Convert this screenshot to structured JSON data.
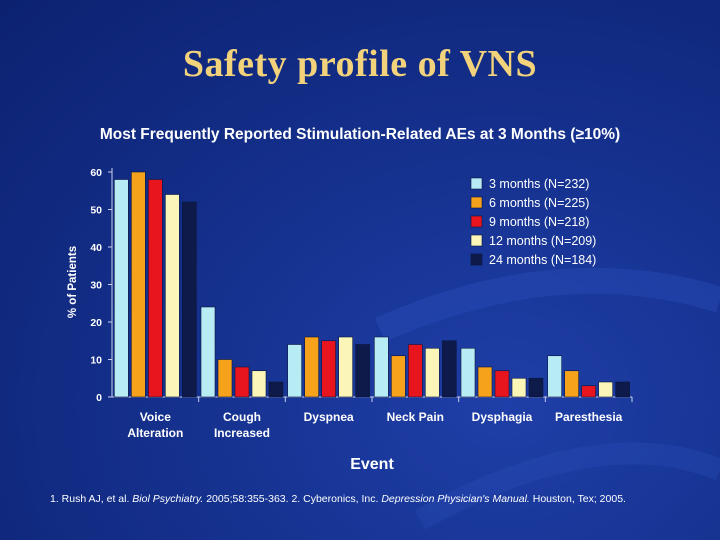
{
  "slide": {
    "title": "Safety profile of VNS",
    "subtitle": "Most Frequently Reported Stimulation-Related AEs at 3 Months (≥10%)",
    "reference": {
      "part1": "1. Rush AJ, et al. ",
      "journal": "Biol Psychiatry.",
      "part2": " 2005;58:355-363. 2. Cyberonics, Inc. ",
      "manual": "Depression Physician's Manual.",
      "part3": " Houston, Tex; 2005."
    }
  },
  "chart_data": {
    "type": "bar",
    "title": "",
    "xlabel": "Event",
    "ylabel": "% of Patients",
    "ylim": [
      0,
      60
    ],
    "yticks": [
      0,
      10,
      20,
      30,
      40,
      50,
      60
    ],
    "grid": false,
    "legend_position": "top-right",
    "categories": [
      [
        "Voice",
        "Alteration"
      ],
      [
        "Cough",
        "Increased"
      ],
      [
        "Dyspnea"
      ],
      [
        "Neck Pain"
      ],
      [
        "Dysphagia"
      ],
      [
        "Paresthesia"
      ]
    ],
    "series": [
      {
        "name": "3 months (N=232)",
        "color": "#b8ecf4",
        "values": [
          58,
          24,
          14,
          16,
          13,
          11
        ]
      },
      {
        "name": "6 months (N=225)",
        "color": "#f7a21b",
        "values": [
          60,
          10,
          16,
          11,
          8,
          7
        ]
      },
      {
        "name": "9 months (N=218)",
        "color": "#e8141e",
        "values": [
          58,
          8,
          15,
          14,
          7,
          3
        ]
      },
      {
        "name": "12 months (N=209)",
        "color": "#fbf5b8",
        "values": [
          54,
          7,
          16,
          13,
          5,
          4
        ]
      },
      {
        "name": "24 months (N=184)",
        "color": "#0d1a4a",
        "values": [
          52,
          4,
          14,
          15,
          5,
          4
        ]
      }
    ]
  }
}
